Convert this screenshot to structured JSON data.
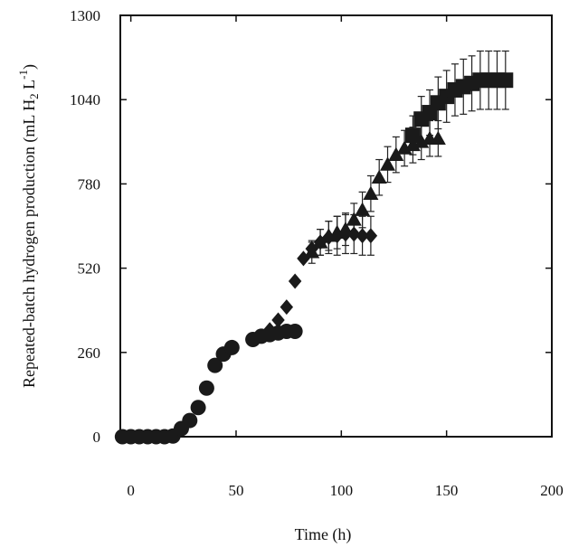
{
  "chart_data": {
    "type": "scatter",
    "title": "",
    "xlabel": "Time (h)",
    "ylabel": {
      "prefix": "Repeated-batch hydrogen production (mL H",
      "sub": "2",
      "mid": " L",
      "sup": "-1",
      "suffix": ")"
    },
    "xlim": [
      -5,
      200
    ],
    "ylim": [
      0,
      1300
    ],
    "x_ticks": [
      0,
      50,
      100,
      150,
      200
    ],
    "y_ticks": [
      0,
      260,
      520,
      780,
      1040,
      1300
    ],
    "grid": false,
    "legend": "none",
    "series": [
      {
        "marker": "circle",
        "x": [
          -4,
          0,
          4,
          8,
          12,
          16,
          20,
          24,
          28,
          32,
          36,
          40,
          44,
          48,
          58,
          62,
          66,
          70,
          74,
          78
        ],
        "y": [
          0,
          0,
          0,
          0,
          0,
          0,
          2,
          25,
          50,
          90,
          150,
          220,
          255,
          275,
          300,
          310,
          315,
          320,
          325,
          325
        ]
      },
      {
        "marker": "diamond",
        "x": [
          66,
          70,
          74,
          78,
          82,
          86,
          90,
          94,
          98,
          102,
          106,
          110,
          114
        ],
        "y": [
          330,
          360,
          400,
          480,
          550,
          580,
          600,
          615,
          620,
          625,
          625,
          620,
          620
        ],
        "err": [
          0,
          0,
          0,
          0,
          0,
          20,
          40,
          50,
          60,
          60,
          60,
          60,
          60
        ]
      },
      {
        "marker": "triangle",
        "x": [
          86,
          90,
          94,
          98,
          102,
          106,
          110,
          114,
          118,
          122,
          126,
          130,
          134,
          138,
          142,
          146
        ],
        "y": [
          570,
          600,
          620,
          630,
          640,
          670,
          700,
          750,
          800,
          840,
          870,
          890,
          900,
          910,
          920,
          920
        ],
        "err": [
          35,
          40,
          45,
          50,
          50,
          50,
          55,
          55,
          55,
          55,
          55,
          55,
          55,
          55,
          55,
          55
        ]
      },
      {
        "marker": "square",
        "x": [
          134,
          138,
          142,
          146,
          150,
          154,
          158,
          162,
          166,
          170,
          174,
          178
        ],
        "y": [
          930,
          980,
          1000,
          1030,
          1050,
          1070,
          1080,
          1090,
          1100,
          1100,
          1100,
          1100
        ],
        "err": [
          60,
          70,
          70,
          80,
          80,
          80,
          85,
          85,
          90,
          90,
          90,
          90
        ]
      }
    ]
  }
}
